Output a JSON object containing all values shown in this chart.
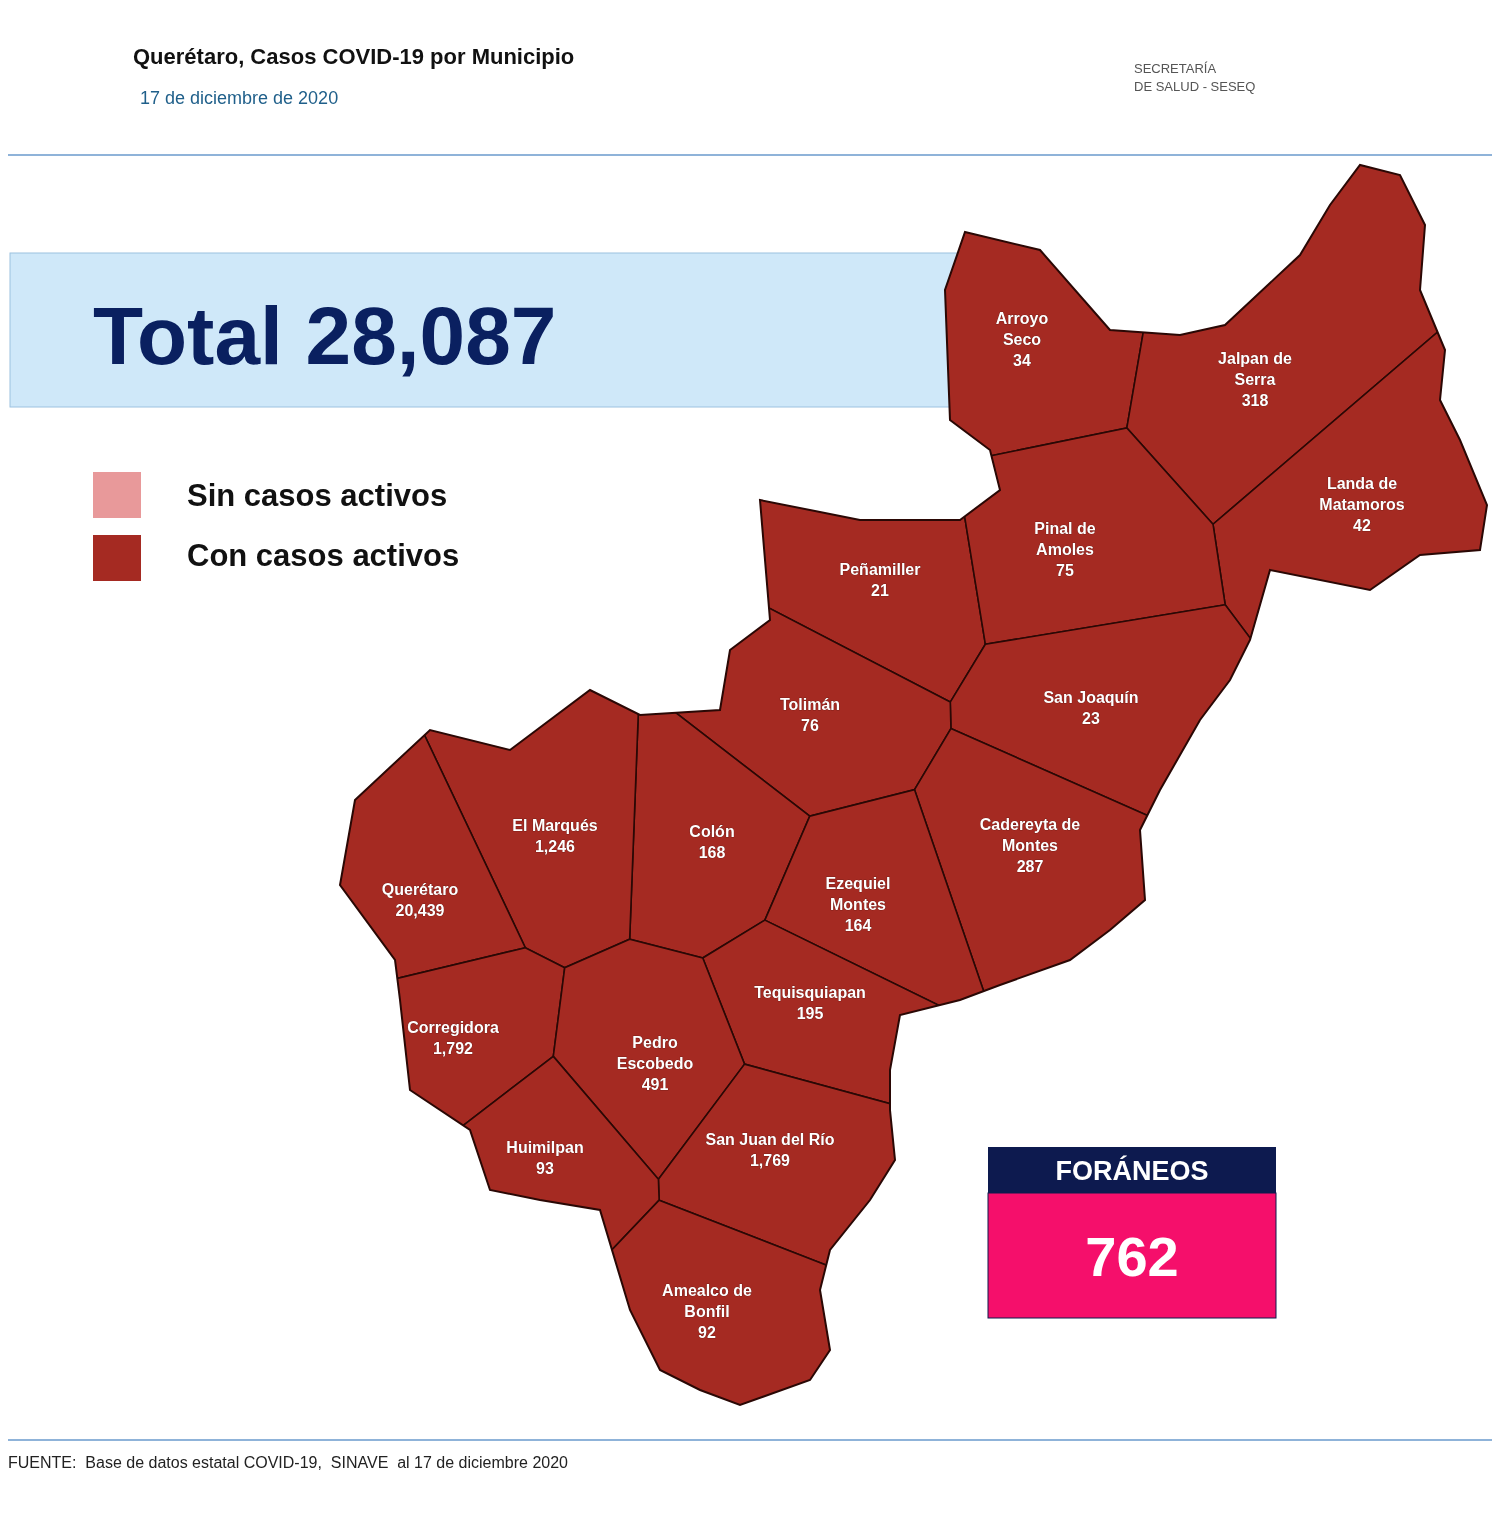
{
  "chart_data": {
    "type": "other",
    "title": "Querétaro, Casos COVID-19 por Municipio",
    "subtitle": "17 de diciembre de 2020",
    "categories": [
      "Arroyo Seco",
      "Jalpan de Serra",
      "Landa de Matamoros",
      "Peñamiller",
      "Pinal de Amoles",
      "San Joaquín",
      "Tolimán",
      "Cadereyta de Montes",
      "Colón",
      "El  Marqués",
      "Querétaro",
      "Ezequiel Montes",
      "Tequisquiapan",
      "Corregidora",
      "Pedro Escobedo",
      "San Juan del Río",
      "Huimilpan",
      "Amealco de Bonfil"
    ],
    "series": [
      {
        "name": "Sin casos activos",
        "color": "#e8999a",
        "values": [
          null,
          null,
          null,
          null,
          null,
          null,
          null,
          null,
          null,
          null,
          null,
          null,
          null,
          null,
          null,
          null,
          null,
          null
        ]
      },
      {
        "name": "Con casos activos",
        "color": "#a52a22",
        "values": [
          34,
          318,
          42,
          21,
          75,
          23,
          76,
          287,
          168,
          1246,
          20439,
          164,
          195,
          1792,
          491,
          1769,
          93,
          92
        ],
        "value_labels": [
          "34",
          "318",
          "42",
          "21",
          "75",
          "23",
          "76",
          "287",
          "168",
          "1,246",
          "20,439",
          "164",
          "195",
          "1,792",
          "491",
          "1,769",
          "93",
          "92"
        ]
      }
    ],
    "legend": "top left",
    "annotations": [
      "SECRETARÍA DE SALUD - SESEQ",
      "Total 28,087",
      "FORÁNEOS",
      "762",
      "FUENTE:  Base de datos estatal COVID-19,  SINAVE  al 17 de diciembre 2020"
    ]
  }
}
